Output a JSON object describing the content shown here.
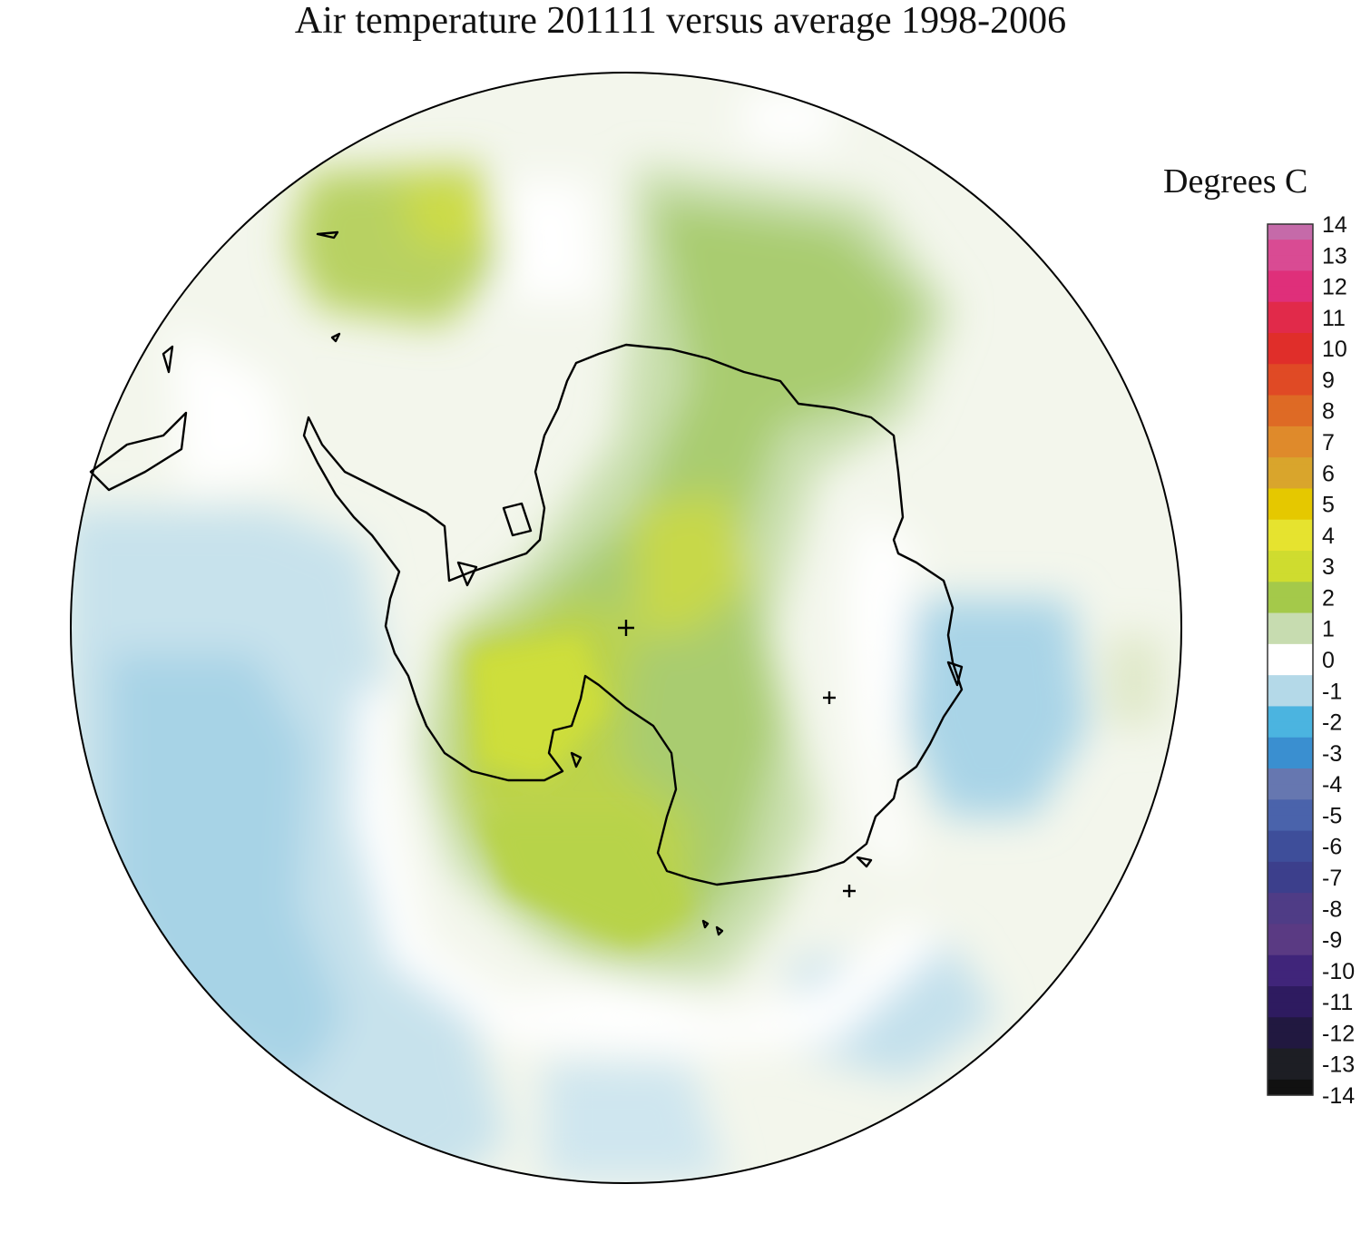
{
  "title": "Air temperature 201111 versus average 1998-2006",
  "legend": {
    "label": "Degrees C",
    "ticks": [
      "14",
      "13",
      "12",
      "11",
      "10",
      "9",
      "8",
      "7",
      "6",
      "5",
      "4",
      "3",
      "2",
      "1",
      "0",
      "-1",
      "-2",
      "-3",
      "-4",
      "-5",
      "-6",
      "-7",
      "-8",
      "-9",
      "-10",
      "-11",
      "-12",
      "-13",
      "-14"
    ],
    "colors": {
      "14": "#c56aa9",
      "13": "#d94b93",
      "12": "#df2f7a",
      "11": "#e12a4a",
      "10": "#e02e2a",
      "9": "#e04a25",
      "8": "#de6a25",
      "7": "#df8a2b",
      "6": "#d9a52c",
      "5": "#e5c800",
      "4": "#e6e32f",
      "3": "#cfdc2f",
      "2": "#a4c94a",
      "1": "#c7dcb0",
      "0": "#ffffff",
      "-1": "#b4d9e8",
      "-2": "#4bb4e0",
      "-3": "#3a8fd0",
      "-4": "#6677b0",
      "-5": "#4a63ab",
      "-6": "#3e4e9a",
      "-7": "#3c3f8c",
      "-8": "#4f3c86",
      "-9": "#5a3a83",
      "-10": "#40257a",
      "-11": "#2e1b60",
      "-12": "#211840",
      "-13": "#1d1e24",
      "-14": "#111111"
    }
  },
  "map": {
    "projection": "south-polar-stereographic",
    "variable": "air temperature anomaly"
  }
}
